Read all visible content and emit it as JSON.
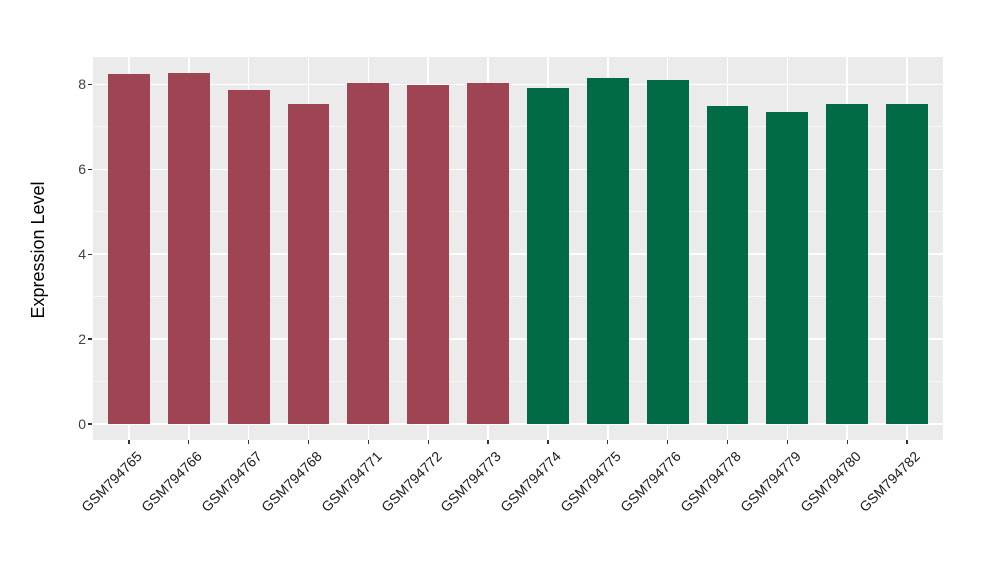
{
  "chart_data": {
    "type": "bar",
    "title": "",
    "xlabel": "",
    "ylabel": "Expression Level",
    "categories": [
      "GSM794765",
      "GSM794766",
      "GSM794767",
      "GSM794768",
      "GSM794771",
      "GSM794772",
      "GSM794773",
      "GSM794774",
      "GSM794775",
      "GSM794776",
      "GSM794778",
      "GSM794779",
      "GSM794780",
      "GSM794782"
    ],
    "values": [
      8.24,
      8.26,
      7.88,
      7.54,
      8.03,
      7.98,
      8.03,
      7.92,
      8.15,
      8.1,
      7.49,
      7.34,
      7.55,
      7.54
    ],
    "bar_colors": [
      "#9E4452",
      "#9E4452",
      "#9E4452",
      "#9E4452",
      "#9E4452",
      "#9E4452",
      "#9E4452",
      "#006B45",
      "#006B45",
      "#006B45",
      "#006B45",
      "#006B45",
      "#006B45",
      "#006B45"
    ],
    "group_colors": {
      "group1": "#9E4452",
      "group2": "#006B45"
    },
    "yticks": [
      0,
      2,
      4,
      6,
      8
    ],
    "yticks_minor": [
      1,
      3,
      5,
      7
    ],
    "ylim": [
      0,
      8.66
    ],
    "grid": true,
    "legend": "none",
    "theme": {
      "panel_background": "#EBEBEB",
      "grid_major_color": "#FFFFFF",
      "grid_minor_color": "rgba(255,255,255,0.62)",
      "tick_color": "#333333"
    }
  }
}
